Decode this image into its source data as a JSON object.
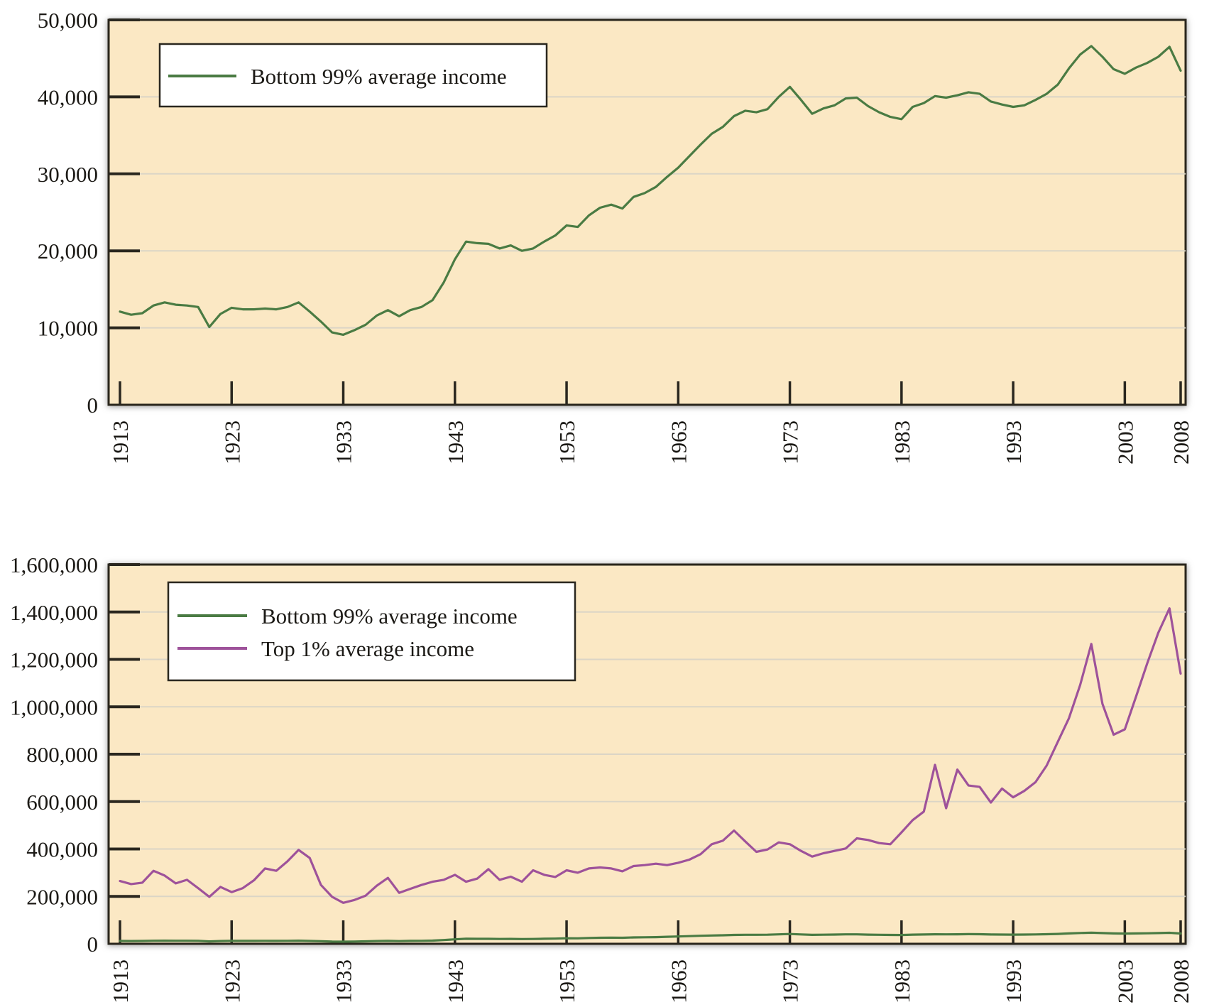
{
  "figure": {
    "description": "Two stacked line charts of U.S. average real income, 1913-2008"
  },
  "colors": {
    "page_background": "#ffffff",
    "plot_background": "#fbe8c4",
    "grid_line": "#dbd5c6",
    "axis": "#2a271f",
    "text": "#1c1a16",
    "legend_background": "#ffffff",
    "bottom99_line": "#4a7b43",
    "top1_line": "#9e529a"
  },
  "charts": [
    {
      "name": "bottom-99-average-income",
      "y_axis": {
        "tick_labels": [
          "50,000",
          "40,000",
          "30,000",
          "20,000",
          "10,000",
          "0"
        ]
      },
      "x_axis": {
        "tick_labels": [
          "1913",
          "1923",
          "1933",
          "1943",
          "1953",
          "1963",
          "1973",
          "1983",
          "1993",
          "2003",
          "2008"
        ]
      },
      "legend": [
        {
          "label": "Bottom 99% average income",
          "color": "#4a7b43"
        }
      ]
    },
    {
      "name": "bottom-99-vs-top-1-average-income",
      "y_axis": {
        "tick_labels": [
          "1,600,000",
          "1,400,000",
          "1,200,000",
          "1,000,000",
          "800,000",
          "600,000",
          "400,000",
          "200,000",
          "0"
        ]
      },
      "x_axis": {
        "tick_labels": [
          "1913",
          "1923",
          "1933",
          "1943",
          "1953",
          "1963",
          "1973",
          "1983",
          "1993",
          "2003",
          "2008"
        ]
      },
      "legend": [
        {
          "label": "Bottom 99% average income",
          "color": "#4a7b43"
        },
        {
          "label": "Top 1% average income",
          "color": "#9e529a"
        }
      ]
    }
  ],
  "chart_data": [
    {
      "type": "line",
      "title": "",
      "xlabel": "",
      "ylabel": "",
      "ylim": [
        0,
        50000
      ],
      "y_ticks": [
        0,
        10000,
        20000,
        30000,
        40000,
        50000
      ],
      "x_ticks": [
        1913,
        1923,
        1933,
        1943,
        1953,
        1963,
        1973,
        1983,
        1993,
        2003,
        2008
      ],
      "grid": "horizontal",
      "legend_position": "top-left",
      "x": [
        1913,
        1914,
        1915,
        1916,
        1917,
        1918,
        1919,
        1920,
        1921,
        1922,
        1923,
        1924,
        1925,
        1926,
        1927,
        1928,
        1929,
        1930,
        1931,
        1932,
        1933,
        1934,
        1935,
        1936,
        1937,
        1938,
        1939,
        1940,
        1941,
        1942,
        1943,
        1944,
        1945,
        1946,
        1947,
        1948,
        1949,
        1950,
        1951,
        1952,
        1953,
        1954,
        1955,
        1956,
        1957,
        1958,
        1959,
        1960,
        1961,
        1962,
        1963,
        1964,
        1965,
        1966,
        1967,
        1968,
        1969,
        1970,
        1971,
        1972,
        1973,
        1974,
        1975,
        1976,
        1977,
        1978,
        1979,
        1980,
        1981,
        1982,
        1983,
        1984,
        1985,
        1986,
        1987,
        1988,
        1989,
        1990,
        1991,
        1992,
        1993,
        1994,
        1995,
        1996,
        1997,
        1998,
        1999,
        2000,
        2001,
        2002,
        2003,
        2004,
        2005,
        2006,
        2007,
        2008
      ],
      "series": [
        {
          "name": "Bottom 99% average income",
          "values": [
            12100,
            11700,
            11900,
            12900,
            13300,
            13000,
            12900,
            12700,
            10100,
            11800,
            12600,
            12400,
            12400,
            12500,
            12400,
            12700,
            13300,
            12100,
            10800,
            9400,
            9100,
            9700,
            10400,
            11600,
            12300,
            11500,
            12300,
            12700,
            13600,
            15900,
            18900,
            21200,
            21000,
            20900,
            20300,
            20700,
            20000,
            20300,
            21200,
            22000,
            23300,
            23100,
            24600,
            25600,
            26000,
            25500,
            27000,
            27500,
            28300,
            29600,
            30800,
            32300,
            33800,
            35200,
            36100,
            37500,
            38200,
            38000,
            38400,
            40000,
            41300,
            39600,
            37800,
            38500,
            38900,
            39800,
            39900,
            38800,
            38000,
            37400,
            37100,
            38700,
            39200,
            40100,
            39900,
            40200,
            40600,
            40400,
            39400,
            39000,
            38700,
            38900,
            39600,
            40400,
            41600,
            43700,
            45500,
            46600,
            45200,
            43600,
            43000,
            43800,
            44400,
            45200,
            46500,
            43400
          ]
        }
      ]
    },
    {
      "type": "line",
      "title": "",
      "xlabel": "",
      "ylabel": "",
      "ylim": [
        0,
        1600000
      ],
      "y_ticks": [
        0,
        200000,
        400000,
        600000,
        800000,
        1000000,
        1200000,
        1400000,
        1600000
      ],
      "x_ticks": [
        1913,
        1923,
        1933,
        1943,
        1953,
        1963,
        1973,
        1983,
        1993,
        2003,
        2008
      ],
      "grid": "horizontal",
      "legend_position": "top-left",
      "x": [
        1913,
        1914,
        1915,
        1916,
        1917,
        1918,
        1919,
        1920,
        1921,
        1922,
        1923,
        1924,
        1925,
        1926,
        1927,
        1928,
        1929,
        1930,
        1931,
        1932,
        1933,
        1934,
        1935,
        1936,
        1937,
        1938,
        1939,
        1940,
        1941,
        1942,
        1943,
        1944,
        1945,
        1946,
        1947,
        1948,
        1949,
        1950,
        1951,
        1952,
        1953,
        1954,
        1955,
        1956,
        1957,
        1958,
        1959,
        1960,
        1961,
        1962,
        1963,
        1964,
        1965,
        1966,
        1967,
        1968,
        1969,
        1970,
        1971,
        1972,
        1973,
        1974,
        1975,
        1976,
        1977,
        1978,
        1979,
        1980,
        1981,
        1982,
        1983,
        1984,
        1985,
        1986,
        1987,
        1988,
        1989,
        1990,
        1991,
        1992,
        1993,
        1994,
        1995,
        1996,
        1997,
        1998,
        1999,
        2000,
        2001,
        2002,
        2003,
        2004,
        2005,
        2006,
        2007,
        2008
      ],
      "series": [
        {
          "name": "Bottom 99% average income",
          "values": [
            12100,
            11700,
            11900,
            12900,
            13300,
            13000,
            12900,
            12700,
            10100,
            11800,
            12600,
            12400,
            12400,
            12500,
            12400,
            12700,
            13300,
            12100,
            10800,
            9400,
            9100,
            9700,
            10400,
            11600,
            12300,
            11500,
            12300,
            12700,
            13600,
            15900,
            18900,
            21200,
            21000,
            20900,
            20300,
            20700,
            20000,
            20300,
            21200,
            22000,
            23300,
            23100,
            24600,
            25600,
            26000,
            25500,
            27000,
            27500,
            28300,
            29600,
            30800,
            32300,
            33800,
            35200,
            36100,
            37500,
            38200,
            38000,
            38400,
            40000,
            41300,
            39600,
            37800,
            38500,
            38900,
            39800,
            39900,
            38800,
            38000,
            37400,
            37100,
            38700,
            39200,
            40100,
            39900,
            40200,
            40600,
            40400,
            39400,
            39000,
            38700,
            38900,
            39600,
            40400,
            41600,
            43700,
            45500,
            46600,
            45200,
            43600,
            43000,
            43800,
            44400,
            45200,
            46500,
            43400
          ]
        },
        {
          "name": "Top 1% average income",
          "values": [
            265000,
            252000,
            258000,
            308000,
            288000,
            255000,
            270000,
            235000,
            198000,
            240000,
            218000,
            235000,
            268000,
            318000,
            308000,
            348000,
            396000,
            362000,
            248000,
            198000,
            173000,
            185000,
            203000,
            245000,
            278000,
            215000,
            232000,
            248000,
            262000,
            270000,
            291000,
            262000,
            275000,
            315000,
            270000,
            283000,
            262000,
            310000,
            291000,
            282000,
            310000,
            300000,
            318000,
            322000,
            318000,
            306000,
            328000,
            332000,
            338000,
            332000,
            342000,
            355000,
            378000,
            420000,
            435000,
            478000,
            432000,
            388000,
            398000,
            428000,
            420000,
            392000,
            368000,
            382000,
            392000,
            402000,
            445000,
            438000,
            425000,
            420000,
            470000,
            522000,
            558000,
            755000,
            572000,
            735000,
            668000,
            662000,
            596000,
            655000,
            618000,
            645000,
            682000,
            752000,
            852000,
            952000,
            1092000,
            1265000,
            1012000,
            882000,
            905000,
            1042000,
            1182000,
            1312000,
            1415000,
            1140000
          ]
        }
      ]
    }
  ]
}
